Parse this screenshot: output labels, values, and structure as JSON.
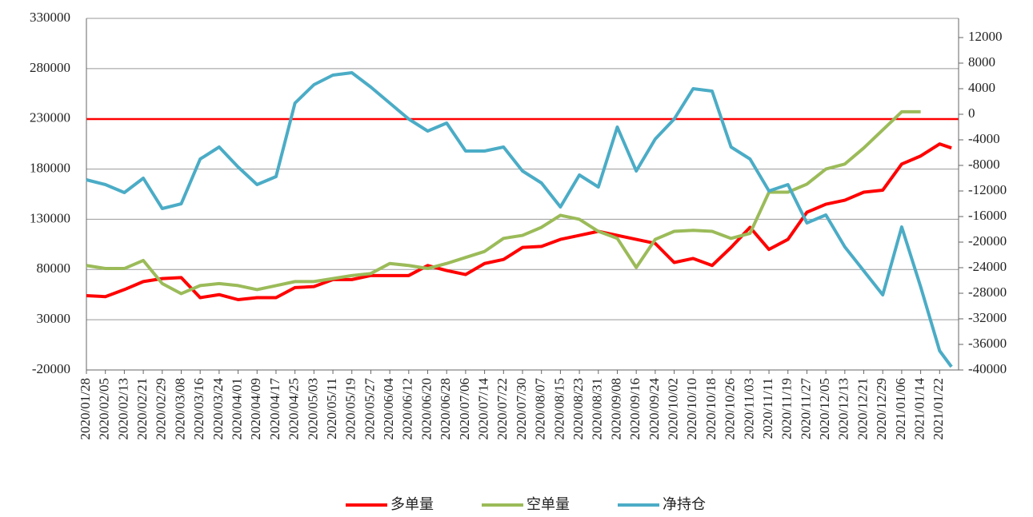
{
  "chart_data": {
    "type": "line",
    "x": [
      "2020/01/28",
      "2020/02/05",
      "2020/02/13",
      "2020/02/21",
      "2020/02/29",
      "2020/03/08",
      "2020/03/16",
      "2020/03/24",
      "2020/04/01",
      "2020/04/09",
      "2020/04/17",
      "2020/04/25",
      "2020/05/03",
      "2020/05/11",
      "2020/05/19",
      "2020/05/27",
      "2020/06/04",
      "2020/06/12",
      "2020/06/20",
      "2020/06/28",
      "2020/07/06",
      "2020/07/14",
      "2020/07/22",
      "2020/07/30",
      "2020/08/07",
      "2020/08/15",
      "2020/08/23",
      "2020/08/31",
      "2020/09/08",
      "2020/09/16",
      "2020/09/24",
      "2020/10/02",
      "2020/10/10",
      "2020/10/18",
      "2020/10/26",
      "2020/11/03",
      "2020/11/11",
      "2020/11/19",
      "2020/11/27",
      "2020/12/05",
      "2020/12/13",
      "2020/12/21",
      "2020/12/29",
      "2021/01/06",
      "2021/01/14",
      "2021/01/22",
      "2021/01/27"
    ],
    "series": [
      {
        "name": "多单量",
        "color": "#ff0000",
        "values": [
          54000,
          53000,
          60000,
          68000,
          71000,
          72000,
          52000,
          55000,
          50000,
          52000,
          52000,
          62000,
          63000,
          70000,
          70000,
          74000,
          74000,
          74000,
          84000,
          79000,
          75000,
          86000,
          90000,
          102000,
          103000,
          110000,
          114000,
          118000,
          114000,
          110000,
          106000,
          87000,
          91000,
          84000,
          102000,
          122000,
          100000,
          110000,
          137000,
          145000,
          149000,
          157000,
          159000,
          185000,
          193000,
          205000,
          201000
        ]
      },
      {
        "name": "空单量",
        "color": "#9bbb59",
        "values": [
          84000,
          81000,
          81000,
          89000,
          66000,
          56000,
          64000,
          66000,
          64000,
          60000,
          64000,
          68000,
          68000,
          71000,
          74000,
          76000,
          86000,
          84000,
          81000,
          86000,
          92000,
          98000,
          111000,
          114000,
          122000,
          134000,
          130000,
          118000,
          111000,
          82000,
          110000,
          118000,
          119000,
          118000,
          111000,
          116000,
          157000,
          157000,
          165000,
          180000,
          185000,
          201000,
          219000,
          237000,
          237000,
          null,
          null
        ]
      },
      {
        "name": "净持仓",
        "color": "#4bacc6",
        "axis": "y2",
        "values": [
          -10250,
          -11000,
          -12250,
          -10000,
          -14750,
          -14000,
          -7000,
          -5125,
          -8250,
          -11000,
          -9750,
          1750,
          4625,
          6125,
          6500,
          4250,
          1750,
          -750,
          -2625,
          -1375,
          -5750,
          -5750,
          -5125,
          -8875,
          -10750,
          -14500,
          -9500,
          -11375,
          -2000,
          -8875,
          -3875,
          -750,
          4000,
          3625,
          -5125,
          -7000,
          -12000,
          -11000,
          -17000,
          -15750,
          -20750,
          -24500,
          -28250,
          -17625,
          -27000,
          -37000,
          -39500
        ]
      }
    ],
    "xlim": [
      "2020/01/28",
      "2021/01/30"
    ],
    "xticks": [
      "2020/01/28",
      "2020/02/05",
      "2020/02/13",
      "2020/02/21",
      "2020/02/29",
      "2020/03/08",
      "2020/03/16",
      "2020/03/24",
      "2020/04/01",
      "2020/04/09",
      "2020/04/17",
      "2020/04/25",
      "2020/05/03",
      "2020/05/11",
      "2020/05/19",
      "2020/05/27",
      "2020/06/04",
      "2020/06/12",
      "2020/06/20",
      "2020/06/28",
      "2020/07/06",
      "2020/07/14",
      "2020/07/22",
      "2020/07/30",
      "2020/08/07",
      "2020/08/15",
      "2020/08/23",
      "2020/08/31",
      "2020/09/08",
      "2020/09/16",
      "2020/09/24",
      "2020/10/02",
      "2020/10/10",
      "2020/10/18",
      "2020/10/26",
      "2020/11/03",
      "2020/11/11",
      "2020/11/19",
      "2020/11/27",
      "2020/12/05",
      "2020/12/13",
      "2020/12/21",
      "2020/12/29",
      "2021/01/06",
      "2021/01/14",
      "2021/01/22"
    ],
    "ylim": [
      -20000,
      330000
    ],
    "yticks": [
      -20000,
      30000,
      80000,
      130000,
      180000,
      230000,
      280000,
      330000
    ],
    "y2lim": [
      -40000,
      15000
    ],
    "y2ticks": [
      -40000,
      -36000,
      -32000,
      -28000,
      -24000,
      -20000,
      -16000,
      -12000,
      -8000,
      -4000,
      0,
      4000,
      8000,
      12000
    ],
    "grid": true,
    "legend": "bottom"
  }
}
